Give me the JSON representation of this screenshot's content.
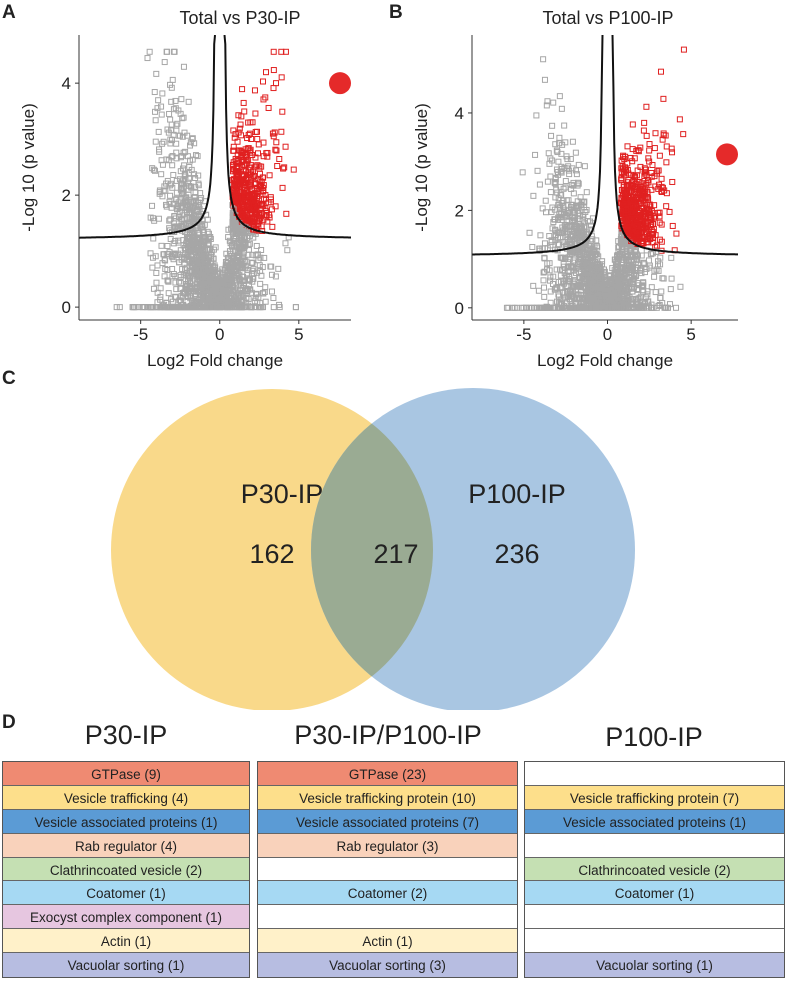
{
  "panels": {
    "a": "A",
    "b": "B",
    "c": "C",
    "d": "D"
  },
  "chart_data": [
    {
      "type": "scatter",
      "title": "Total vs P30-IP",
      "xlabel": "Log2 Fold change",
      "ylabel": "-Log 10 (p value)",
      "xticks": [
        "-5",
        "0",
        "5"
      ],
      "yticks": [
        "0",
        "2",
        "4"
      ],
      "xlim": [
        -8.9,
        8.3
      ],
      "ylim": [
        -0.23,
        4.86
      ],
      "threshold_floor": 1.2,
      "series": [
        {
          "name": "not significant",
          "color": "#a6a6a6"
        },
        {
          "name": "enriched",
          "color": "#e02020"
        }
      ],
      "marker_color": "#e52a2a",
      "marker_y": 4.0,
      "seed": 7
    },
    {
      "type": "scatter",
      "title": "Total vs P100-IP",
      "xlabel": "Log2 Fold change",
      "ylabel": "-Log 10 (p value)",
      "xticks": [
        "-5",
        "0",
        "5"
      ],
      "yticks": [
        "0",
        "2",
        "4"
      ],
      "xlim": [
        -8.1,
        7.8
      ],
      "ylim": [
        -0.25,
        5.6
      ],
      "threshold_floor": 1.05,
      "series": [
        {
          "name": "not significant",
          "color": "#a6a6a6"
        },
        {
          "name": "enriched",
          "color": "#e02020"
        }
      ],
      "marker_color": "#e52a2a",
      "marker_y": 3.15,
      "seed": 13
    }
  ],
  "venn": {
    "left": {
      "label": "P30-IP",
      "count": "162",
      "color": "#f9d98a"
    },
    "right": {
      "label": "P100-IP",
      "count": "236",
      "color": "#a9c6e2"
    },
    "overlap": {
      "count": "217",
      "color": "#9aab93"
    }
  },
  "tables": [
    {
      "title": "P30-IP",
      "rows": [
        {
          "text": "GTPase  (9)",
          "color": "#ef8a72"
        },
        {
          "text": "Vesicle trafficking  (4)",
          "color": "#fddf8b"
        },
        {
          "text": "Vesicle associated proteins  (1)",
          "color": "#5b9bd5"
        },
        {
          "text": "Rab regulator  (4)",
          "color": "#f9d2bb"
        },
        {
          "text": "Clathrincoated vesicle  (2)",
          "color": "#c5e0b3"
        },
        {
          "text": "Coatomer  (1)",
          "color": "#a6d9f3"
        },
        {
          "text": "Exocyst complex component  (1)",
          "color": "#e6c6e0"
        },
        {
          "text": "Actin  (1)",
          "color": "#fff1c9"
        },
        {
          "text": "Vacuolar sorting   (1)",
          "color": "#b7bde1"
        }
      ]
    },
    {
      "title": "P30-IP/P100-IP",
      "rows": [
        {
          "text": "GTPase  (23)",
          "color": "#ef8a72"
        },
        {
          "text": "Vesicle trafficking protein  (10)",
          "color": "#fddf8b"
        },
        {
          "text": "Vesicle associated proteins  (7)",
          "color": "#5b9bd5"
        },
        {
          "text": "Rab regulator  (3)",
          "color": "#f9d2bb"
        },
        {
          "text": "",
          "color": "#ffffff"
        },
        {
          "text": "Coatomer  (2)",
          "color": "#a6d9f3"
        },
        {
          "text": "",
          "color": "#ffffff"
        },
        {
          "text": "Actin  (1)",
          "color": "#fff1c9"
        },
        {
          "text": "Vacuolar sorting  (3)",
          "color": "#b7bde1"
        }
      ]
    },
    {
      "title": "P100-IP",
      "rows": [
        {
          "text": "",
          "color": "#ffffff"
        },
        {
          "text": "Vesicle trafficking protein  (7)",
          "color": "#fddf8b"
        },
        {
          "text": "Vesicle associated proteins  (1)",
          "color": "#5b9bd5"
        },
        {
          "text": "",
          "color": "#ffffff"
        },
        {
          "text": "Clathrincoated vesicle  (2)",
          "color": "#c5e0b3"
        },
        {
          "text": "Coatomer  (1)",
          "color": "#a6d9f3"
        },
        {
          "text": "",
          "color": "#ffffff"
        },
        {
          "text": "",
          "color": "#ffffff"
        },
        {
          "text": "Vacuolar sorting  (1)",
          "color": "#b7bde1"
        }
      ]
    }
  ]
}
